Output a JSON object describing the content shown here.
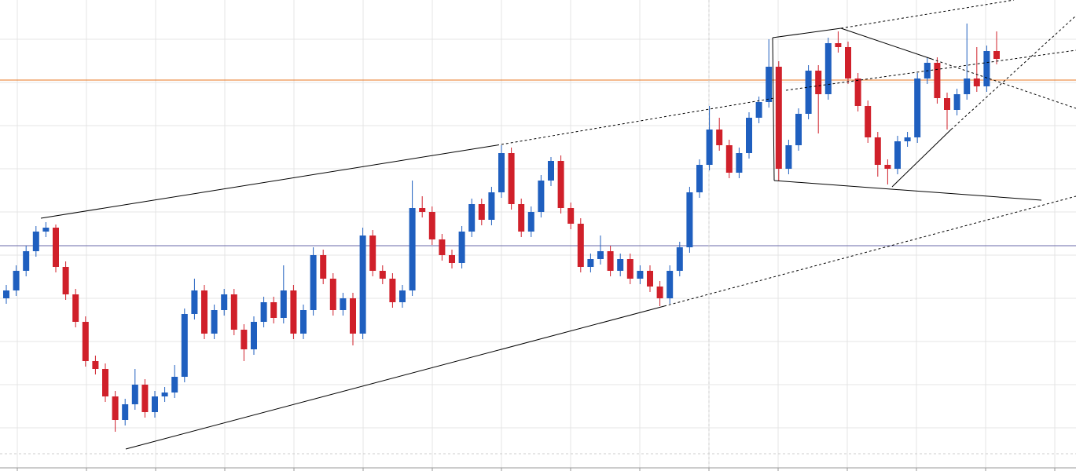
{
  "chart_data": {
    "type": "candlestick",
    "up_color": "#1f5fbf",
    "down_color": "#d0202a",
    "ylim": [
      0,
      600
    ],
    "open": [
      220,
      230,
      255,
      280,
      305,
      310,
      260,
      225,
      190,
      140,
      130,
      95,
      65,
      85,
      110,
      75,
      95,
      100,
      120,
      200,
      230,
      175,
      205,
      225,
      180,
      155,
      190,
      215,
      195,
      230,
      175,
      205,
      275,
      245,
      205,
      220,
      175,
      300,
      255,
      245,
      215,
      230,
      335,
      330,
      295,
      275,
      265,
      305,
      340,
      320,
      355,
      405,
      340,
      305,
      330,
      370,
      395,
      335,
      315,
      260,
      270,
      280,
      255,
      270,
      245,
      255,
      235,
      220,
      255,
      285,
      355,
      390,
      435,
      415,
      380,
      405,
      450,
      470,
      515,
      385,
      415,
      455,
      510,
      480,
      545,
      540,
      500,
      465,
      425,
      390,
      385,
      420,
      425,
      500,
      520,
      475,
      460,
      480,
      500,
      490,
      535
    ],
    "high": [
      237,
      262,
      287,
      312,
      317,
      314,
      267,
      232,
      197,
      147,
      137,
      102,
      92,
      130,
      117,
      102,
      107,
      135,
      207,
      245,
      237,
      212,
      232,
      232,
      187,
      197,
      222,
      222,
      262,
      237,
      212,
      285,
      282,
      252,
      227,
      227,
      310,
      307,
      262,
      252,
      237,
      370,
      350,
      337,
      302,
      282,
      312,
      347,
      347,
      362,
      415,
      412,
      347,
      337,
      377,
      400,
      402,
      342,
      322,
      277,
      300,
      287,
      277,
      277,
      262,
      262,
      242,
      262,
      292,
      362,
      397,
      465,
      450,
      422,
      412,
      457,
      477,
      550,
      522,
      422,
      462,
      517,
      517,
      552,
      560,
      547,
      507,
      472,
      432,
      397,
      427,
      432,
      507,
      527,
      527,
      482,
      487,
      570,
      540,
      542,
      560
    ],
    "low": [
      213,
      223,
      248,
      273,
      298,
      253,
      218,
      183,
      133,
      123,
      88,
      50,
      58,
      78,
      68,
      68,
      88,
      93,
      113,
      193,
      168,
      168,
      198,
      173,
      140,
      148,
      183,
      188,
      188,
      168,
      168,
      198,
      238,
      198,
      198,
      160,
      168,
      248,
      238,
      208,
      208,
      223,
      323,
      288,
      268,
      258,
      258,
      298,
      313,
      313,
      348,
      333,
      298,
      298,
      323,
      363,
      328,
      308,
      253,
      253,
      263,
      248,
      248,
      238,
      238,
      228,
      210,
      213,
      248,
      278,
      348,
      383,
      408,
      373,
      373,
      398,
      443,
      463,
      370,
      378,
      408,
      448,
      430,
      473,
      533,
      493,
      458,
      418,
      375,
      365,
      378,
      413,
      418,
      493,
      468,
      435,
      453,
      473,
      483,
      483,
      518
    ],
    "close": [
      230,
      255,
      280,
      305,
      310,
      260,
      225,
      190,
      140,
      130,
      95,
      65,
      85,
      110,
      75,
      95,
      100,
      120,
      200,
      230,
      175,
      205,
      225,
      180,
      155,
      190,
      215,
      195,
      230,
      175,
      205,
      275,
      245,
      205,
      220,
      175,
      300,
      255,
      245,
      215,
      230,
      335,
      330,
      295,
      275,
      265,
      305,
      340,
      320,
      355,
      405,
      340,
      305,
      330,
      370,
      395,
      335,
      315,
      260,
      270,
      280,
      255,
      270,
      245,
      255,
      235,
      220,
      255,
      285,
      355,
      390,
      435,
      415,
      380,
      405,
      450,
      470,
      515,
      385,
      415,
      455,
      510,
      480,
      545,
      540,
      500,
      465,
      425,
      390,
      385,
      420,
      425,
      500,
      520,
      475,
      460,
      480,
      500,
      490,
      535,
      525
    ]
  }
}
